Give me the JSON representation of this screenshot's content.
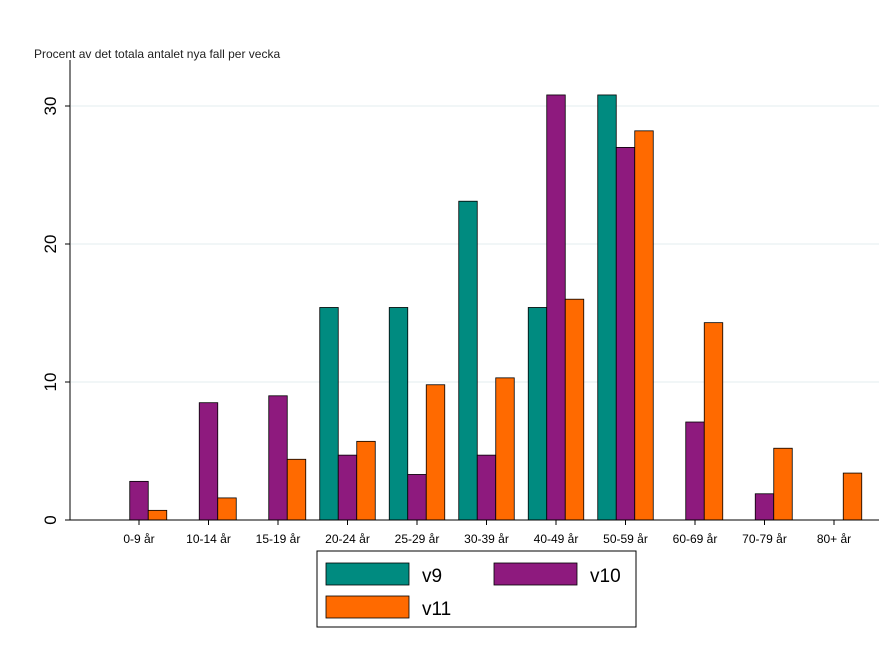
{
  "chart_data": {
    "type": "bar",
    "title": "",
    "ylabel": "Procent av det totala antalet nya fall per vecka",
    "xlabel": "",
    "ylim": [
      0,
      32
    ],
    "yticks": [
      0,
      10,
      20,
      30
    ],
    "grid": true,
    "legend_position": "bottom",
    "categories": [
      "0-9 år",
      "10-14 år",
      "15-19 år",
      "20-24 år",
      "25-29 år",
      "30-39 år",
      "40-49 år",
      "50-59 år",
      "60-69 år",
      "70-79 år",
      "80+ år"
    ],
    "series": [
      {
        "name": "v9",
        "color": "#008B80",
        "values": [
          0,
          0,
          0,
          15.4,
          15.4,
          23.1,
          15.4,
          30.8,
          0,
          0,
          0
        ]
      },
      {
        "name": "v10",
        "color": "#8E1A7E",
        "values": [
          2.8,
          8.5,
          9.0,
          4.7,
          3.3,
          4.7,
          30.8,
          27.0,
          7.1,
          1.9,
          0
        ]
      },
      {
        "name": "v11",
        "color": "#FF6A00",
        "values": [
          0.7,
          1.6,
          4.4,
          5.7,
          9.8,
          10.3,
          16.0,
          28.2,
          14.3,
          5.2,
          3.4
        ]
      }
    ]
  }
}
